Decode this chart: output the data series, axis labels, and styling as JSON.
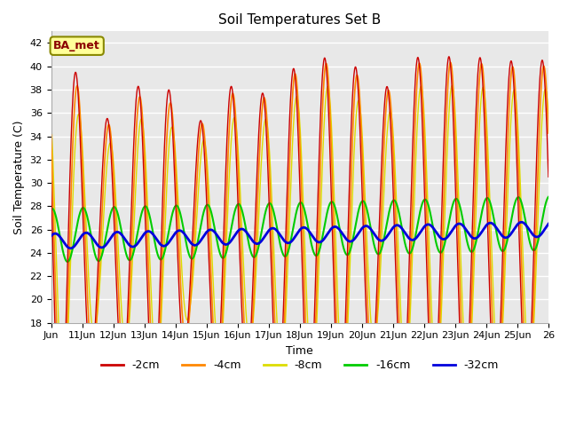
{
  "title": "Soil Temperatures Set B",
  "xlabel": "Time",
  "ylabel": "Soil Temperature (C)",
  "ylim": [
    18,
    43
  ],
  "yticks": [
    18,
    20,
    22,
    24,
    26,
    28,
    30,
    32,
    34,
    36,
    38,
    40,
    42
  ],
  "annotation": "BA_met",
  "bg_color": "#e8e8e8",
  "line_colors": {
    "-2cm": "#cc0000",
    "-4cm": "#ff8800",
    "-8cm": "#dddd00",
    "-16cm": "#00cc00",
    "-32cm": "#0000dd"
  },
  "x_tick_days": [
    10,
    11,
    12,
    13,
    14,
    15,
    16,
    17,
    18,
    19,
    20,
    21,
    22,
    23,
    24,
    25,
    26
  ],
  "x_tick_labels": [
    "Jun",
    "11Jun",
    "12Jun",
    "13Jun",
    "14Jun",
    "15Jun",
    "16Jun",
    "17Jun",
    "18Jun",
    "19Jun",
    "20Jun",
    "21Jun",
    "22Jun",
    "23Jun",
    "24Jun",
    "25Jun",
    "26"
  ],
  "peak_amps_2cm": [
    16.5,
    9.5,
    12.5,
    14.5,
    8.5,
    13.5,
    11.5,
    14.0,
    15.0,
    15.5,
    11.5,
    15.0,
    15.0,
    15.0,
    14.5,
    14.5
  ],
  "peak_amps_4cm": [
    15.5,
    9.0,
    11.5,
    13.5,
    8.0,
    13.0,
    11.0,
    13.5,
    14.5,
    15.0,
    11.0,
    14.5,
    14.5,
    14.5,
    14.0,
    14.0
  ],
  "peak_amps_8cm": [
    13.0,
    7.5,
    9.5,
    11.5,
    6.5,
    11.0,
    9.0,
    11.5,
    12.5,
    13.0,
    9.0,
    12.5,
    12.5,
    12.5,
    12.0,
    12.0
  ],
  "base_2cm": 25.0,
  "base_4cm": 25.0,
  "base_8cm": 25.0,
  "base_16cm": 25.5,
  "base_32cm": 25.0,
  "amp_16cm": 2.3,
  "amp_32cm": 0.65,
  "phase_2cm": 0.55,
  "phase_4cm": 0.6,
  "phase_8cm": 0.65,
  "phase_16cm": 0.78,
  "phase_32cm": 0.88,
  "trend": 0.065
}
